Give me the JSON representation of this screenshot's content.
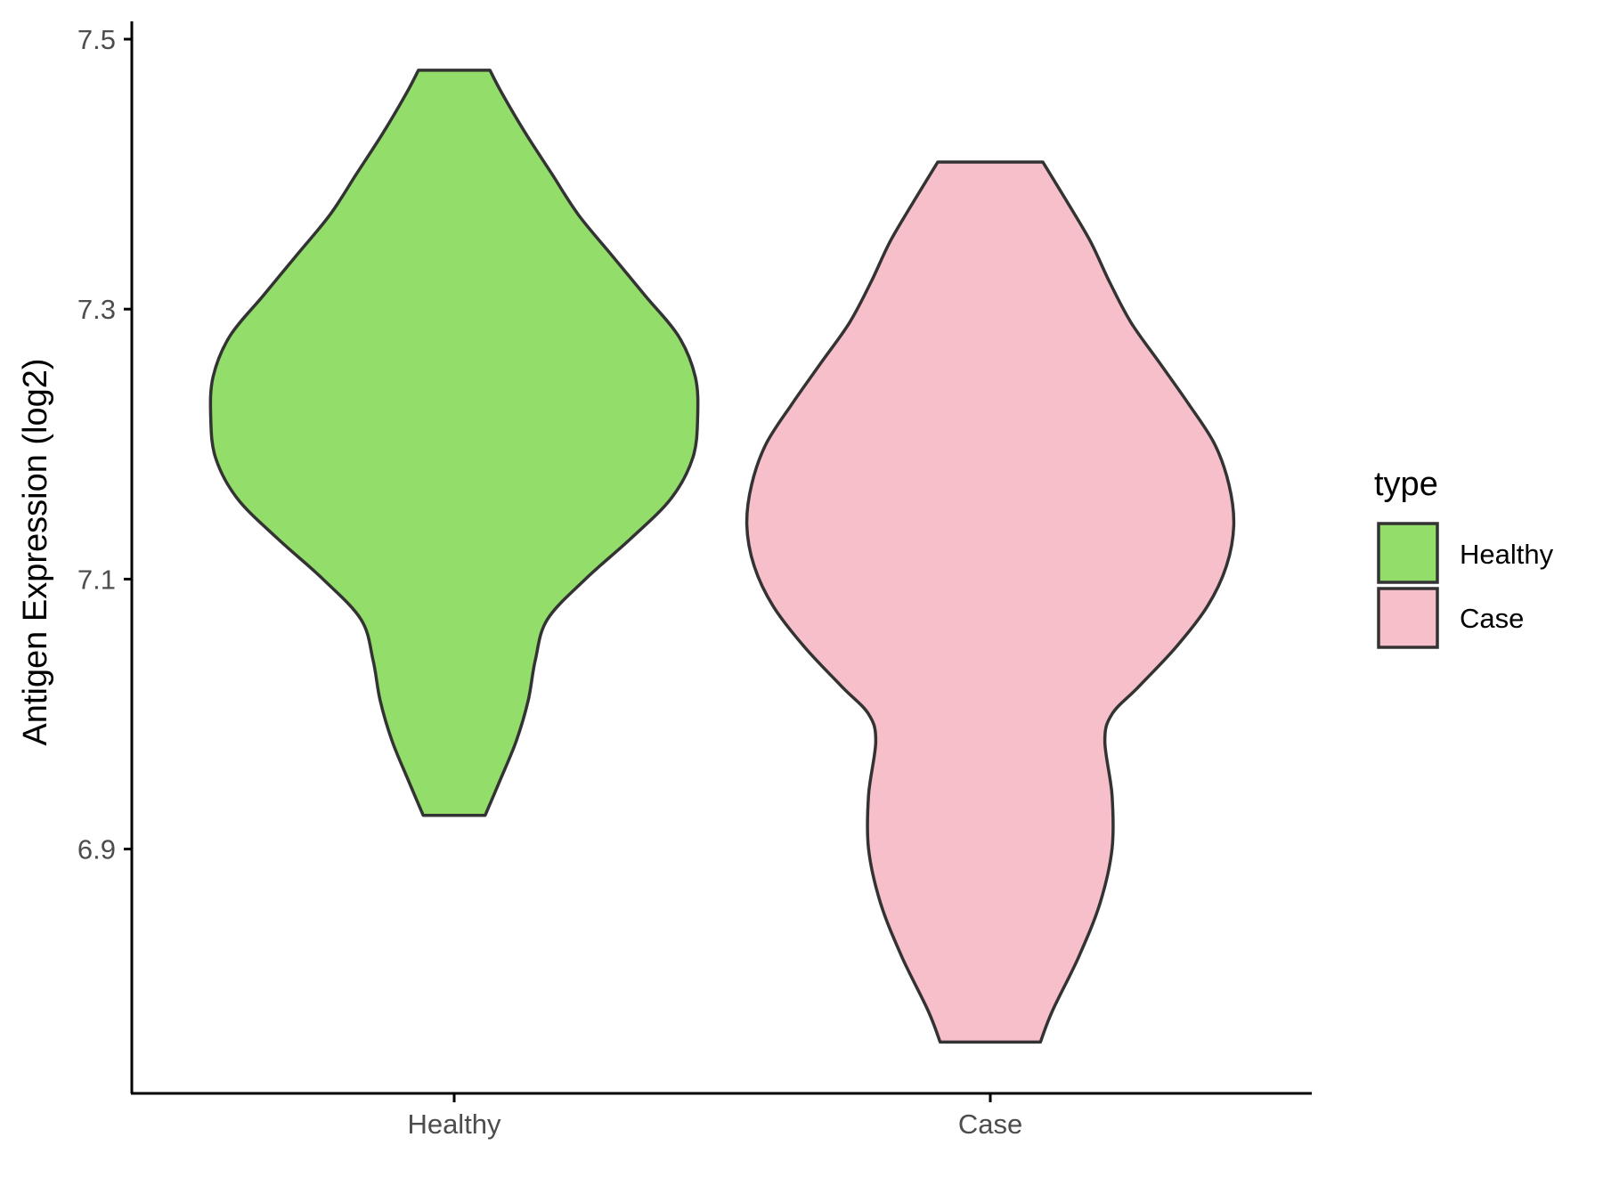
{
  "chart_data": {
    "type": "violin",
    "categories": [
      "Healthy",
      "Case"
    ],
    "ylabel": "Antigen Expression (log2)",
    "xlabel": "",
    "ylim": [
      6.73,
      7.52
    ],
    "yticks": [
      "7.5",
      "7.3",
      "7.1",
      "6.9"
    ],
    "legend": {
      "title": "type",
      "position": "right",
      "entries": [
        "Healthy",
        "Case"
      ]
    },
    "colors": {
      "Healthy": "#93dd6b",
      "Case": "#f7bfca",
      "outline": "#333333",
      "axis": "#000000"
    },
    "series": [
      {
        "name": "Healthy",
        "min": 6.925,
        "max": 7.477,
        "density": [
          [
            6.925,
            0.13
          ],
          [
            6.95,
            0.19
          ],
          [
            6.98,
            0.26
          ],
          [
            7.01,
            0.31
          ],
          [
            7.04,
            0.34
          ],
          [
            7.07,
            0.39
          ],
          [
            7.1,
            0.55
          ],
          [
            7.13,
            0.74
          ],
          [
            7.16,
            0.91
          ],
          [
            7.19,
            1.0
          ],
          [
            7.22,
            1.02
          ],
          [
            7.25,
            1.01
          ],
          [
            7.28,
            0.94
          ],
          [
            7.31,
            0.8
          ],
          [
            7.34,
            0.66
          ],
          [
            7.37,
            0.52
          ],
          [
            7.4,
            0.41
          ],
          [
            7.43,
            0.3
          ],
          [
            7.46,
            0.2
          ],
          [
            7.477,
            0.15
          ]
        ]
      },
      {
        "name": "Case",
        "min": 6.757,
        "max": 7.409,
        "density": [
          [
            6.757,
            0.21
          ],
          [
            6.78,
            0.26
          ],
          [
            6.82,
            0.37
          ],
          [
            6.86,
            0.46
          ],
          [
            6.9,
            0.51
          ],
          [
            6.94,
            0.51
          ],
          [
            6.98,
            0.48
          ],
          [
            7.0,
            0.51
          ],
          [
            7.02,
            0.62
          ],
          [
            7.05,
            0.78
          ],
          [
            7.08,
            0.91
          ],
          [
            7.11,
            0.99
          ],
          [
            7.14,
            1.02
          ],
          [
            7.17,
            1.0
          ],
          [
            7.2,
            0.94
          ],
          [
            7.23,
            0.83
          ],
          [
            7.26,
            0.71
          ],
          [
            7.29,
            0.59
          ],
          [
            7.32,
            0.5
          ],
          [
            7.35,
            0.42
          ],
          [
            7.38,
            0.32
          ],
          [
            7.409,
            0.22
          ]
        ]
      }
    ]
  }
}
